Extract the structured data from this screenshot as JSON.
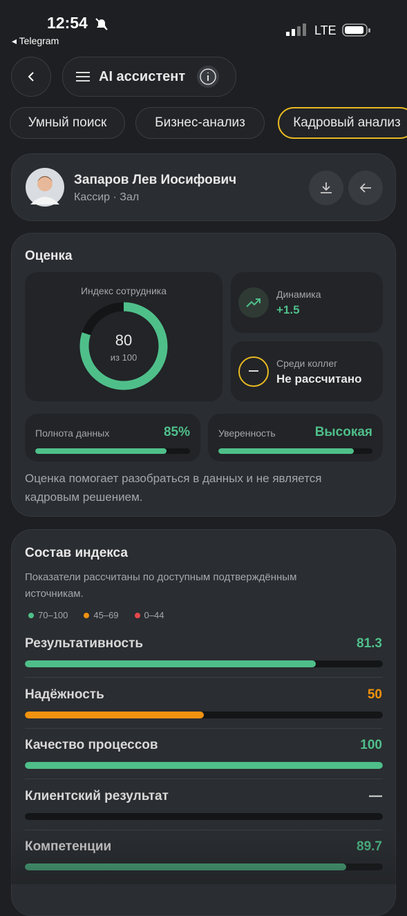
{
  "status": {
    "time": "12:54",
    "back_app": "Telegram",
    "network": "LTE"
  },
  "header": {
    "title": "AI ассистент"
  },
  "tabs": {
    "items": [
      "Умный поиск",
      "Бизнес-анализ",
      "Кадровый анализ"
    ],
    "active": 2
  },
  "profile": {
    "name": "Запаров Лев Иосифович",
    "role": "Кассир · Зал"
  },
  "score": {
    "title": "Оценка",
    "index_label": "Индекс сотрудника",
    "index_value": 80,
    "index_max": 100,
    "index_max_label": "из 100",
    "dynamics": {
      "label": "Динамика",
      "value": "+1.5"
    },
    "peers": {
      "label": "Среди коллег",
      "value": "Не рассчитано"
    },
    "completeness": {
      "label": "Полнота данных",
      "value": 85,
      "value_label": "85%"
    },
    "confidence": {
      "label": "Уверенность",
      "value_label": "Высокая",
      "bar": 88
    },
    "note": "Оценка помогает разобраться в данных и не является кадровым решением."
  },
  "composition": {
    "title": "Состав индекса",
    "subtitle": "Показатели рассчитаны по доступным подтверждённым источникам.",
    "scale_max": 100,
    "legend": [
      {
        "label": "70–100",
        "color": "#4fbf8a"
      },
      {
        "label": "45–69",
        "color": "#f0920f"
      },
      {
        "label": "0–44",
        "color": "#e5484d"
      }
    ],
    "items": [
      {
        "name": "Результативность",
        "value": 81.3,
        "color": "#4fbf8a"
      },
      {
        "name": "Надёжность",
        "value": 50,
        "color": "#f0920f"
      },
      {
        "name": "Качество процессов",
        "value": 100,
        "color": "#4fbf8a"
      },
      {
        "name": "Клиентский результат",
        "value": null,
        "value_label": "—",
        "color": "#e6e6e6"
      },
      {
        "name": "Компетенции",
        "value": 89.7,
        "color": "#4fbf8a"
      }
    ]
  }
}
